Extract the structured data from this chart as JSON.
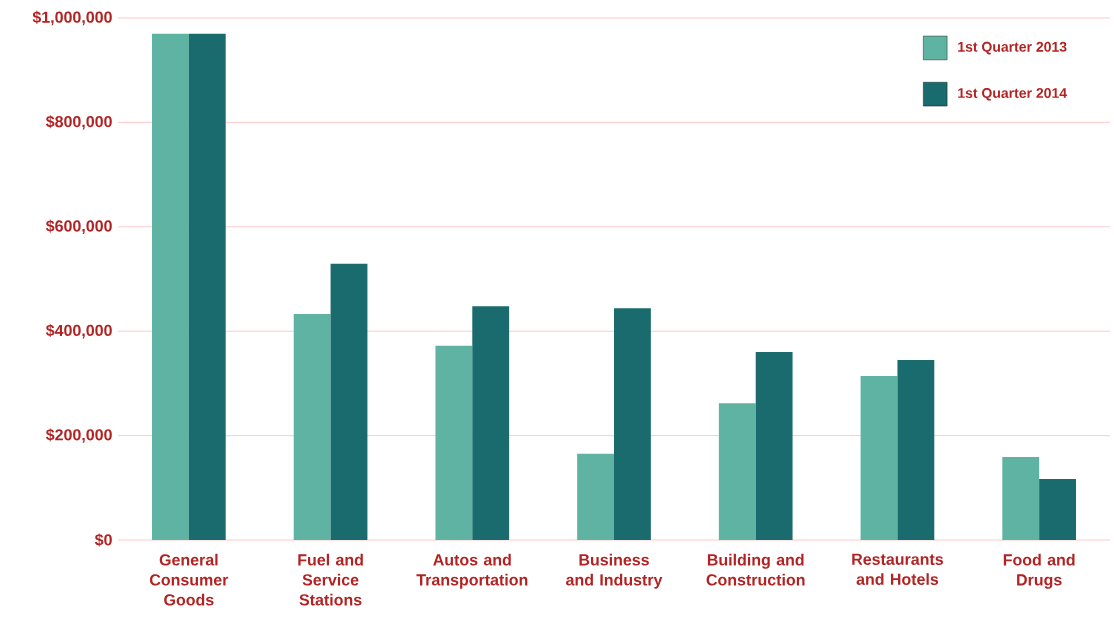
{
  "chart_data": {
    "type": "bar",
    "categories": [
      "General Consumer Goods",
      "Fuel and Service Stations",
      "Autos and Transportation",
      "Business and Industry",
      "Building and Construction",
      "Restaurants and Hotels",
      "Food and Drugs"
    ],
    "series": [
      {
        "name": "1st Quarter 2013",
        "color": "#5fb3a3",
        "values": [
          970000,
          433000,
          372000,
          165000,
          262000,
          314000,
          159000
        ]
      },
      {
        "name": "1st Quarter 2014",
        "color": "#1a6b6e",
        "values": [
          970000,
          529000,
          448000,
          444000,
          360000,
          345000,
          117000
        ]
      }
    ],
    "ylim": [
      0,
      1000000
    ],
    "yticks": [
      {
        "value": 0,
        "label": "$0"
      },
      {
        "value": 200000,
        "label": "$200,000"
      },
      {
        "value": 400000,
        "label": "$400,000"
      },
      {
        "value": 600000,
        "label": "$600,000"
      },
      {
        "value": 800000,
        "label": "$800,000"
      },
      {
        "value": 1000000,
        "label": "$1,000,000"
      }
    ],
    "grid": "y",
    "legend": "top right"
  }
}
